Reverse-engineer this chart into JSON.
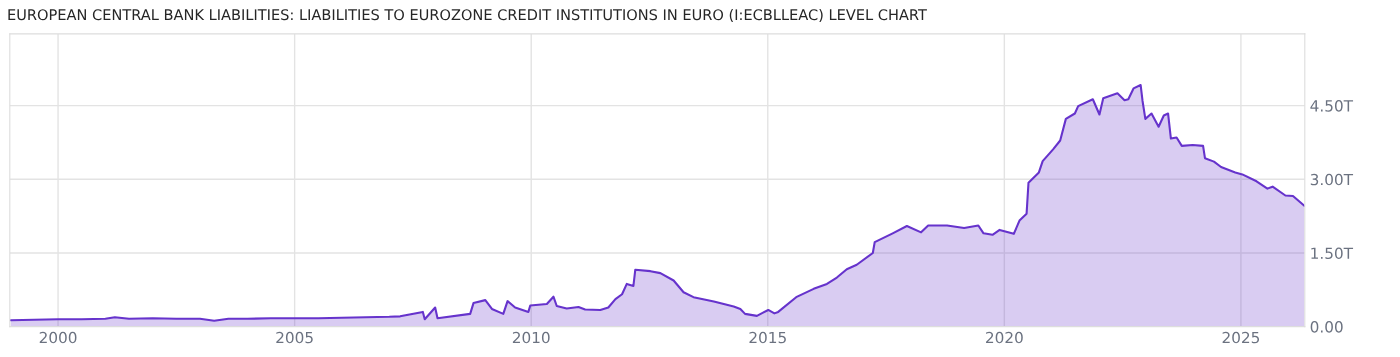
{
  "chart_data": {
    "type": "area",
    "title": "EUROPEAN CENTRAL BANK LIABILITIES: LIABILITIES TO EUROZONE CREDIT INSTITUTIONS IN EURO (I:ECBLLEAC) LEVEL CHART",
    "x": [
      1999.0,
      1999.5,
      2000.0,
      2000.5,
      2001.0,
      2001.2,
      2001.5,
      2002.0,
      2002.5,
      2003.0,
      2003.3,
      2003.6,
      2004.0,
      2004.5,
      2005.0,
      2005.5,
      2006.0,
      2006.5,
      2007.0,
      2007.23,
      2007.71,
      2007.75,
      2007.97,
      2008.02,
      2008.71,
      2008.78,
      2009.03,
      2009.17,
      2009.41,
      2009.5,
      2009.66,
      2009.94,
      2009.98,
      2010.33,
      2010.47,
      2010.54,
      2010.75,
      2011.0,
      2011.14,
      2011.46,
      2011.63,
      2011.78,
      2011.92,
      2012.02,
      2012.16,
      2012.2,
      2012.52,
      2012.73,
      2013.01,
      2013.22,
      2013.43,
      2013.86,
      2014.28,
      2014.42,
      2014.52,
      2014.77,
      2015.01,
      2015.14,
      2015.22,
      2015.6,
      2015.97,
      2016.25,
      2016.46,
      2016.67,
      2016.88,
      2017.22,
      2017.26,
      2017.64,
      2017.94,
      2018.24,
      2018.39,
      2018.79,
      2019.15,
      2019.45,
      2019.56,
      2019.75,
      2019.9,
      2020.2,
      2020.32,
      2020.47,
      2020.51,
      2020.73,
      2020.81,
      2021.03,
      2021.18,
      2021.3,
      2021.49,
      2021.56,
      2021.87,
      2022.01,
      2022.09,
      2022.39,
      2022.54,
      2022.62,
      2022.73,
      2022.88,
      2022.92,
      2022.98,
      2023.11,
      2023.26,
      2023.37,
      2023.46,
      2023.52,
      2023.64,
      2023.75,
      2023.98,
      2024.2,
      2024.24,
      2024.43,
      2024.58,
      2024.88,
      2025.03,
      2025.33,
      2025.56,
      2025.67,
      2025.94,
      2026.1,
      2026.34
    ],
    "series": [
      {
        "color": "#6633cc",
        "values": [
          0.13,
          0.14,
          0.15,
          0.15,
          0.16,
          0.19,
          0.16,
          0.17,
          0.16,
          0.16,
          0.12,
          0.16,
          0.16,
          0.17,
          0.17,
          0.17,
          0.18,
          0.19,
          0.2,
          0.21,
          0.3,
          0.15,
          0.39,
          0.17,
          0.26,
          0.48,
          0.54,
          0.36,
          0.26,
          0.52,
          0.39,
          0.3,
          0.43,
          0.46,
          0.61,
          0.42,
          0.37,
          0.4,
          0.35,
          0.34,
          0.39,
          0.56,
          0.66,
          0.87,
          0.83,
          1.16,
          1.13,
          1.09,
          0.94,
          0.7,
          0.6,
          0.51,
          0.41,
          0.36,
          0.26,
          0.22,
          0.34,
          0.27,
          0.3,
          0.6,
          0.77,
          0.87,
          1.0,
          1.17,
          1.26,
          1.5,
          1.72,
          1.9,
          2.05,
          1.92,
          2.06,
          2.06,
          2.01,
          2.06,
          1.9,
          1.87,
          1.97,
          1.89,
          2.16,
          2.3,
          2.93,
          3.14,
          3.37,
          3.61,
          3.79,
          4.23,
          4.34,
          4.49,
          4.63,
          4.32,
          4.65,
          4.75,
          4.61,
          4.63,
          4.85,
          4.92,
          4.6,
          4.23,
          4.34,
          4.07,
          4.3,
          4.34,
          3.83,
          3.85,
          3.68,
          3.7,
          3.68,
          3.43,
          3.36,
          3.25,
          3.14,
          3.1,
          2.96,
          2.81,
          2.85,
          2.67,
          2.66,
          2.46
        ]
      }
    ],
    "xlim": [
      1998.98,
      2026.35
    ],
    "ylim": [
      0,
      5.96
    ],
    "xticks": [
      2000,
      2005,
      2010,
      2015,
      2020,
      2025
    ],
    "yticks": [
      {
        "value": 0,
        "label": "0.00"
      },
      {
        "value": 1.5,
        "label": "1.50T"
      },
      {
        "value": 3.0,
        "label": "3.00T"
      },
      {
        "value": 4.5,
        "label": "4.50T"
      }
    ],
    "grid": true,
    "legend": false
  }
}
